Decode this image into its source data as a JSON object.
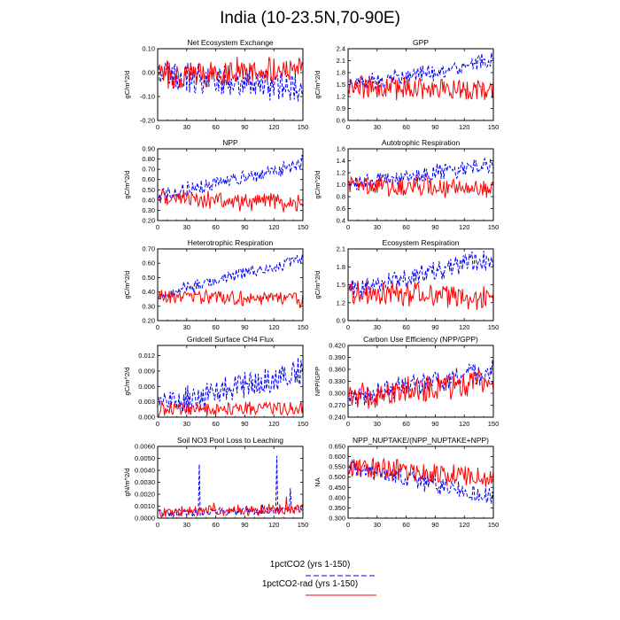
{
  "title": "India (10-23.5N,70-90E)",
  "legend": [
    {
      "label": "1pctCO2 (yrs 1-150)",
      "color": "#0000ff",
      "dash": true
    },
    {
      "label": "1pctCO2-rad (yrs 1-150)",
      "color": "#ff0000",
      "dash": false
    }
  ],
  "chart_data": [
    {
      "type": "line",
      "title": "Net Ecosystem Exchange",
      "ylabel": "gC/m^2/d",
      "xlim": [
        0,
        150
      ],
      "ylim": [
        -0.2,
        0.1
      ],
      "xticks": [
        "0",
        "30",
        "60",
        "90",
        "120",
        "150"
      ],
      "yticks": [
        "-0.20",
        "-0.10",
        "0.00",
        "0.10"
      ],
      "series": [
        {
          "name": "1pctCO2 (yrs 1-150)",
          "color": "#0000ff",
          "dash": true,
          "start": -0.01,
          "end": -0.06,
          "amp": 0.06
        },
        {
          "name": "1pctCO2-rad (yrs 1-150)",
          "color": "#ff0000",
          "dash": false,
          "start": -0.01,
          "end": 0.02,
          "amp": 0.05
        }
      ]
    },
    {
      "type": "line",
      "title": "GPP",
      "ylabel": "gC/m^2/d",
      "xlim": [
        0,
        150
      ],
      "ylim": [
        0.6,
        2.4
      ],
      "xticks": [
        "0",
        "30",
        "60",
        "90",
        "120",
        "150"
      ],
      "yticks": [
        "0.6",
        "0.9",
        "1.2",
        "1.5",
        "1.8",
        "2.1",
        "2.4"
      ],
      "series": [
        {
          "name": "1pctCO2 (yrs 1-150)",
          "color": "#0000ff",
          "dash": true,
          "start": 1.45,
          "end": 2.1,
          "amp": 0.2
        },
        {
          "name": "1pctCO2-rad (yrs 1-150)",
          "color": "#ff0000",
          "dash": false,
          "start": 1.45,
          "end": 1.35,
          "amp": 0.25
        }
      ]
    },
    {
      "type": "line",
      "title": "NPP",
      "ylabel": "gC/m^2/d",
      "xlim": [
        0,
        150
      ],
      "ylim": [
        0.2,
        0.9
      ],
      "xticks": [
        "0",
        "30",
        "60",
        "90",
        "120",
        "150"
      ],
      "yticks": [
        "0.20",
        "0.30",
        "0.40",
        "0.50",
        "0.60",
        "0.70",
        "0.80",
        "0.90"
      ],
      "series": [
        {
          "name": "1pctCO2 (yrs 1-150)",
          "color": "#0000ff",
          "dash": true,
          "start": 0.43,
          "end": 0.76,
          "amp": 0.07
        },
        {
          "name": "1pctCO2-rad (yrs 1-150)",
          "color": "#ff0000",
          "dash": false,
          "start": 0.42,
          "end": 0.36,
          "amp": 0.08
        }
      ]
    },
    {
      "type": "line",
      "title": "Autotrophic Respiration",
      "ylabel": "gC/m^2/d",
      "xlim": [
        0,
        150
      ],
      "ylim": [
        0.4,
        1.6
      ],
      "xticks": [
        "0",
        "30",
        "60",
        "90",
        "120",
        "150"
      ],
      "yticks": [
        "0.4",
        "0.6",
        "0.8",
        "1.0",
        "1.2",
        "1.4",
        "1.6"
      ],
      "series": [
        {
          "name": "1pctCO2 (yrs 1-150)",
          "color": "#0000ff",
          "dash": true,
          "start": 1.0,
          "end": 1.33,
          "amp": 0.12
        },
        {
          "name": "1pctCO2-rad (yrs 1-150)",
          "color": "#ff0000",
          "dash": false,
          "start": 1.0,
          "end": 0.92,
          "amp": 0.15
        }
      ]
    },
    {
      "type": "line",
      "title": "Heterotrophic Respiration",
      "ylabel": "gC/m^2/d",
      "xlim": [
        0,
        150
      ],
      "ylim": [
        0.2,
        0.7
      ],
      "xticks": [
        "0",
        "30",
        "60",
        "90",
        "120",
        "150"
      ],
      "yticks": [
        "0.20",
        "0.30",
        "0.40",
        "0.50",
        "0.60",
        "0.70"
      ],
      "series": [
        {
          "name": "1pctCO2 (yrs 1-150)",
          "color": "#0000ff",
          "dash": true,
          "start": 0.38,
          "end": 0.63,
          "amp": 0.04
        },
        {
          "name": "1pctCO2-rad (yrs 1-150)",
          "color": "#ff0000",
          "dash": false,
          "start": 0.37,
          "end": 0.34,
          "amp": 0.05
        }
      ]
    },
    {
      "type": "line",
      "title": "Ecosystem Respiration",
      "ylabel": "gC/m^2/d",
      "xlim": [
        0,
        150
      ],
      "ylim": [
        0.9,
        2.1
      ],
      "xticks": [
        "0",
        "30",
        "60",
        "90",
        "120",
        "150"
      ],
      "yticks": [
        "0.9",
        "1.2",
        "1.5",
        "1.8",
        "2.1"
      ],
      "series": [
        {
          "name": "1pctCO2 (yrs 1-150)",
          "color": "#0000ff",
          "dash": true,
          "start": 1.4,
          "end": 1.95,
          "amp": 0.15
        },
        {
          "name": "1pctCO2-rad (yrs 1-150)",
          "color": "#ff0000",
          "dash": false,
          "start": 1.4,
          "end": 1.25,
          "amp": 0.18
        }
      ]
    },
    {
      "type": "line",
      "title": "Gridcell Surface CH4 Flux",
      "ylabel": "gC/m^2/d",
      "xlim": [
        0,
        150
      ],
      "ylim": [
        0,
        0.014
      ],
      "xticks": [
        "0",
        "30",
        "60",
        "90",
        "120",
        "150"
      ],
      "yticks": [
        "0.000",
        "0.003",
        "0.006",
        "0.009",
        "0.012"
      ],
      "series": [
        {
          "name": "1pctCO2 (yrs 1-150)",
          "color": "#0000ff",
          "dash": true,
          "start": 0.002,
          "end": 0.009,
          "amp": 0.0025
        },
        {
          "name": "1pctCO2-rad (yrs 1-150)",
          "color": "#ff0000",
          "dash": false,
          "start": 0.0015,
          "end": 0.0018,
          "amp": 0.0012
        }
      ]
    },
    {
      "type": "line",
      "title": "Carbon Use Efficiency (NPP/GPP)",
      "ylabel": "NPP/GPP",
      "xlim": [
        0,
        150
      ],
      "ylim": [
        0.24,
        0.42
      ],
      "xticks": [
        "0",
        "30",
        "60",
        "90",
        "120",
        "150"
      ],
      "yticks": [
        "0.240",
        "0.270",
        "0.300",
        "0.330",
        "0.360",
        "0.390",
        "0.420"
      ],
      "series": [
        {
          "name": "1pctCO2 (yrs 1-150)",
          "color": "#0000ff",
          "dash": true,
          "start": 0.29,
          "end": 0.355,
          "amp": 0.025
        },
        {
          "name": "1pctCO2-rad (yrs 1-150)",
          "color": "#ff0000",
          "dash": false,
          "start": 0.29,
          "end": 0.33,
          "amp": 0.03
        }
      ]
    },
    {
      "type": "line",
      "title": "Soil NO3 Pool Loss to Leaching",
      "ylabel": "gN/m^2/d",
      "xlim": [
        0,
        150
      ],
      "ylim": [
        0,
        0.006
      ],
      "xticks": [
        "0",
        "30",
        "60",
        "90",
        "120",
        "150"
      ],
      "yticks": [
        "0.0000",
        "0.0010",
        "0.0020",
        "0.0030",
        "0.0040",
        "0.0050",
        "0.0060"
      ],
      "series": [
        {
          "name": "1pctCO2 (yrs 1-150)",
          "color": "#0000ff",
          "dash": true,
          "start": 0.0004,
          "end": 0.0007,
          "amp": 0.0003,
          "spikes": [
            [
              43,
              0.0045
            ],
            [
              108,
              0.0012
            ],
            [
              123,
              0.0052
            ],
            [
              137,
              0.0025
            ]
          ]
        },
        {
          "name": "1pctCO2-rad (yrs 1-150)",
          "color": "#ff0000",
          "dash": false,
          "start": 0.0005,
          "end": 0.0008,
          "amp": 0.0004,
          "spikes": [
            [
              58,
              0.0013
            ],
            [
              115,
              0.0012
            ],
            [
              133,
              0.0018
            ]
          ]
        }
      ]
    },
    {
      "type": "line",
      "title": "NPP_NUPTAKE/(NPP_NUPTAKE+NPP)",
      "ylabel": "NA",
      "xlim": [
        0,
        150
      ],
      "ylim": [
        0.3,
        0.65
      ],
      "xticks": [
        "0",
        "30",
        "60",
        "90",
        "120",
        "150"
      ],
      "yticks": [
        "0.300",
        "0.350",
        "0.400",
        "0.450",
        "0.500",
        "0.550",
        "0.600",
        "0.650"
      ],
      "series": [
        {
          "name": "1pctCO2 (yrs 1-150)",
          "color": "#0000ff",
          "dash": true,
          "start": 0.55,
          "end": 0.4,
          "amp": 0.04
        },
        {
          "name": "1pctCO2-rad (yrs 1-150)",
          "color": "#ff0000",
          "dash": false,
          "start": 0.55,
          "end": 0.5,
          "amp": 0.045
        }
      ]
    }
  ]
}
